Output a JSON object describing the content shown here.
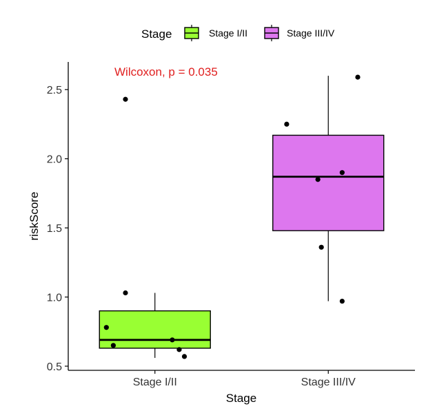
{
  "chart_data": {
    "type": "box",
    "xlabel": "Stage",
    "ylabel": "riskScore",
    "ylim": [
      0.47,
      2.7
    ],
    "yticks": [
      0.5,
      1.0,
      1.5,
      2.0,
      2.5
    ],
    "ytick_labels": [
      "0.5",
      "1.0",
      "1.5",
      "2.0",
      "2.5"
    ],
    "categories": [
      "Stage I/II",
      "Stage III/IV"
    ],
    "legend": {
      "title": "Stage",
      "position": "top",
      "entries": [
        "Stage I/II",
        "Stage III/IV"
      ]
    },
    "annotation": {
      "text": "Wilcoxon, p = 0.035",
      "color": "#e02020"
    },
    "grid": false,
    "series": [
      {
        "category": "Stage I/II",
        "color": "#99ff33",
        "box": {
          "whisker_low": 0.56,
          "q1": 0.63,
          "median": 0.69,
          "q3": 0.9,
          "whisker_high": 1.03
        },
        "points": [
          {
            "jitter": -0.17,
            "y": 2.43
          },
          {
            "jitter": -0.17,
            "y": 1.03
          },
          {
            "jitter": -0.28,
            "y": 0.78
          },
          {
            "jitter": -0.24,
            "y": 0.65
          },
          {
            "jitter": 0.1,
            "y": 0.69
          },
          {
            "jitter": 0.14,
            "y": 0.62
          },
          {
            "jitter": 0.17,
            "y": 0.57
          }
        ]
      },
      {
        "category": "Stage III/IV",
        "color": "#dd77ee",
        "box": {
          "whisker_low": 0.97,
          "q1": 1.48,
          "median": 1.87,
          "q3": 2.17,
          "whisker_high": 2.6
        },
        "points": [
          {
            "jitter": 0.17,
            "y": 2.59
          },
          {
            "jitter": -0.24,
            "y": 2.25
          },
          {
            "jitter": 0.08,
            "y": 1.9
          },
          {
            "jitter": -0.06,
            "y": 1.85
          },
          {
            "jitter": -0.04,
            "y": 1.36
          },
          {
            "jitter": 0.08,
            "y": 0.97
          }
        ]
      }
    ]
  }
}
